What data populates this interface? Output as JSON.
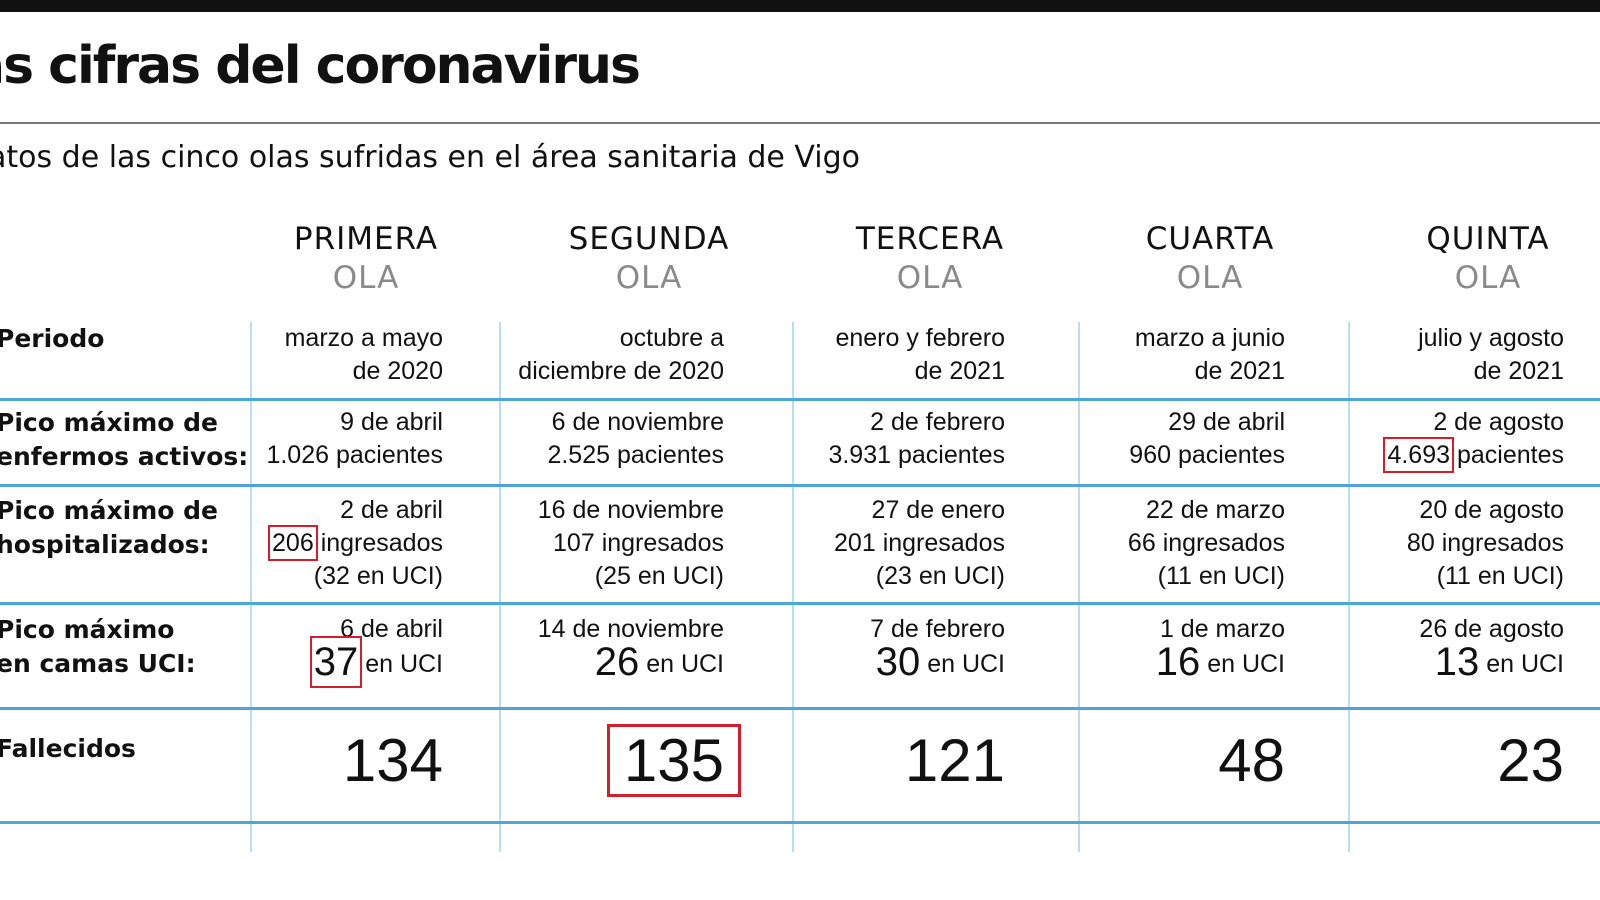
{
  "title": "as cifras del coronavirus",
  "subtitle": "atos de las cinco olas sufridas en el área sanitaria de Vigo",
  "columns": [
    {
      "name": "PRIMERA",
      "sub": "OLA"
    },
    {
      "name": "SEGUNDA",
      "sub": "OLA"
    },
    {
      "name": "TERCERA",
      "sub": "OLA"
    },
    {
      "name": "CUARTA",
      "sub": "OLA"
    },
    {
      "name": "QUINTA",
      "sub": "OLA"
    }
  ],
  "rows": {
    "periodo": {
      "label": "Periodo",
      "values": [
        [
          "marzo a mayo",
          "de 2020"
        ],
        [
          "octubre a",
          "diciembre de 2020"
        ],
        [
          "enero y febrero",
          "de 2021"
        ],
        [
          "marzo a junio",
          "de 2021"
        ],
        [
          "julio y agosto",
          "de 2021"
        ]
      ]
    },
    "activos": {
      "label": "Pico máximo de\nenfermos activos:",
      "values": [
        {
          "date": "9 de abril",
          "num": "1.026",
          "unit": "pacientes"
        },
        {
          "date": "6 de noviembre",
          "num": "2.525",
          "unit": "pacientes"
        },
        {
          "date": "2 de febrero",
          "num": "3.931",
          "unit": "pacientes"
        },
        {
          "date": "29 de abril",
          "num": "960",
          "unit": "pacientes"
        },
        {
          "date": "2 de agosto",
          "num": "4.693",
          "unit": "pacientes"
        }
      ]
    },
    "hospitalizados": {
      "label": "Pico máximo de\nhospitalizados:",
      "values": [
        {
          "date": "2 de abril",
          "num": "206",
          "unit": "ingresados",
          "uci": "(32 en UCI)"
        },
        {
          "date": "16 de noviembre",
          "num": "107",
          "unit": "ingresados",
          "uci": "(25 en UCI)"
        },
        {
          "date": "27 de enero",
          "num": "201",
          "unit": "ingresados",
          "uci": "(23 en UCI)"
        },
        {
          "date": "22 de marzo",
          "num": "66",
          "unit": "ingresados",
          "uci": "(11 en UCI)"
        },
        {
          "date": "20 de agosto",
          "num": "80",
          "unit": "ingresados",
          "uci": "(11 en UCI)"
        }
      ]
    },
    "uci": {
      "label": "Pico máximo\nen camas UCI:",
      "values": [
        {
          "date": "6 de abril",
          "num": "37",
          "unit": "en UCI"
        },
        {
          "date": "14 de noviembre",
          "num": "26",
          "unit": "en UCI"
        },
        {
          "date": "7 de febrero",
          "num": "30",
          "unit": "en UCI"
        },
        {
          "date": "1 de marzo",
          "num": "16",
          "unit": "en UCI"
        },
        {
          "date": "26 de agosto",
          "num": "13",
          "unit": "en UCI"
        }
      ]
    },
    "fallecidos": {
      "label": "Fallecidos",
      "values": [
        "134",
        "135",
        "121",
        "48",
        "23"
      ]
    }
  },
  "highlight_color": "#d11f2e",
  "grid_color": "#4ea6d8"
}
